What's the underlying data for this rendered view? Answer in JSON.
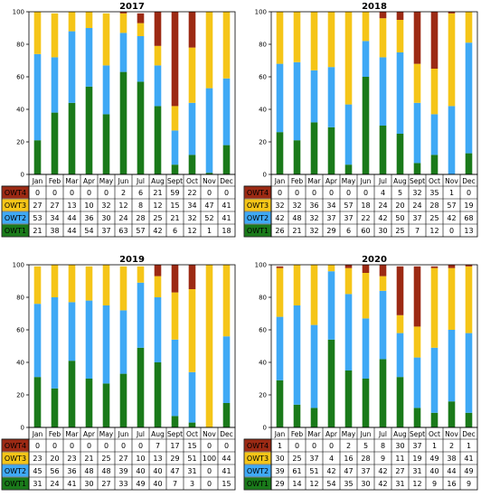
{
  "colors": {
    "OWT1": "#1a7a1a",
    "OWT2": "#3fa9f5",
    "OWT3": "#f5c518",
    "OWT4": "#9c2a14",
    "grid_line": "#000000"
  },
  "chart_data": [
    {
      "type": "bar",
      "stacked": true,
      "title": "2017",
      "categories": [
        "Jan",
        "Feb",
        "Mar",
        "Apr",
        "May",
        "Jun",
        "Jul",
        "Aug",
        "Sept",
        "Oct",
        "Nov",
        "Dec"
      ],
      "ylim": [
        0,
        100
      ],
      "yticks": [
        "0",
        "20",
        "40",
        "60",
        "80",
        "100"
      ],
      "series": [
        {
          "name": "OWT4",
          "values": [
            0,
            0,
            0,
            0,
            0,
            2,
            6,
            21,
            59,
            22,
            0,
            0
          ]
        },
        {
          "name": "OWT3",
          "values": [
            27,
            27,
            13,
            10,
            32,
            12,
            8,
            12,
            15,
            34,
            47,
            41
          ]
        },
        {
          "name": "OWT2",
          "values": [
            53,
            34,
            44,
            36,
            30,
            24,
            28,
            25,
            21,
            32,
            52,
            41
          ]
        },
        {
          "name": "OWT1",
          "values": [
            21,
            38,
            44,
            54,
            37,
            63,
            57,
            42,
            6,
            12,
            1,
            18
          ]
        }
      ]
    },
    {
      "type": "bar",
      "stacked": true,
      "title": "2018",
      "categories": [
        "Jan",
        "Feb",
        "Mar",
        "Apr",
        "May",
        "Jun",
        "Jul",
        "Aug",
        "Sept",
        "Oct",
        "Nov",
        "Dec"
      ],
      "ylim": [
        0,
        100
      ],
      "yticks": [
        "0",
        "20",
        "40",
        "60",
        "80",
        "100"
      ],
      "series": [
        {
          "name": "OWT4",
          "values": [
            0,
            0,
            0,
            0,
            0,
            0,
            4,
            5,
            32,
            35,
            1,
            0
          ]
        },
        {
          "name": "OWT3",
          "values": [
            32,
            32,
            36,
            34,
            57,
            18,
            24,
            20,
            24,
            28,
            57,
            19
          ]
        },
        {
          "name": "OWT2",
          "values": [
            42,
            48,
            32,
            37,
            37,
            22,
            42,
            50,
            37,
            25,
            42,
            68
          ]
        },
        {
          "name": "OWT1",
          "values": [
            26,
            21,
            32,
            29,
            6,
            60,
            30,
            25,
            7,
            12,
            0,
            13
          ]
        }
      ]
    },
    {
      "type": "bar",
      "stacked": true,
      "title": "2019",
      "categories": [
        "Jan",
        "Feb",
        "Mar",
        "Apr",
        "May",
        "Jun",
        "Jul",
        "Aug",
        "Sept",
        "Oct",
        "Nov",
        "Dec"
      ],
      "ylim": [
        0,
        100
      ],
      "yticks": [
        "0",
        "20",
        "40",
        "60",
        "80",
        "100"
      ],
      "series": [
        {
          "name": "OWT4",
          "values": [
            0,
            0,
            0,
            0,
            0,
            0,
            0,
            7,
            17,
            15,
            0,
            0
          ]
        },
        {
          "name": "OWT3",
          "values": [
            23,
            20,
            23,
            21,
            25,
            27,
            10,
            13,
            29,
            51,
            100,
            44
          ]
        },
        {
          "name": "OWT2",
          "values": [
            45,
            56,
            36,
            48,
            48,
            39,
            40,
            40,
            47,
            31,
            0,
            41
          ]
        },
        {
          "name": "OWT1",
          "values": [
            31,
            24,
            41,
            30,
            27,
            33,
            49,
            40,
            7,
            3,
            0,
            15
          ]
        }
      ]
    },
    {
      "type": "bar",
      "stacked": true,
      "title": "2020",
      "categories": [
        "Jan",
        "Feb",
        "Mar",
        "Apr",
        "May",
        "Jun",
        "Jul",
        "Aug",
        "Sept",
        "Oct",
        "Nov",
        "Dec"
      ],
      "ylim": [
        0,
        100
      ],
      "yticks": [
        "0",
        "20",
        "40",
        "60",
        "80",
        "100"
      ],
      "series": [
        {
          "name": "OWT4",
          "values": [
            1,
            0,
            0,
            0,
            2,
            5,
            8,
            30,
            37,
            1,
            2,
            1
          ]
        },
        {
          "name": "OWT3",
          "values": [
            30,
            25,
            37,
            4,
            16,
            28,
            9,
            11,
            19,
            49,
            38,
            41
          ]
        },
        {
          "name": "OWT2",
          "values": [
            39,
            61,
            51,
            42,
            47,
            37,
            42,
            27,
            31,
            40,
            44,
            49
          ]
        },
        {
          "name": "OWT1",
          "values": [
            29,
            14,
            12,
            54,
            35,
            30,
            42,
            31,
            12,
            9,
            16,
            9
          ]
        }
      ]
    }
  ]
}
